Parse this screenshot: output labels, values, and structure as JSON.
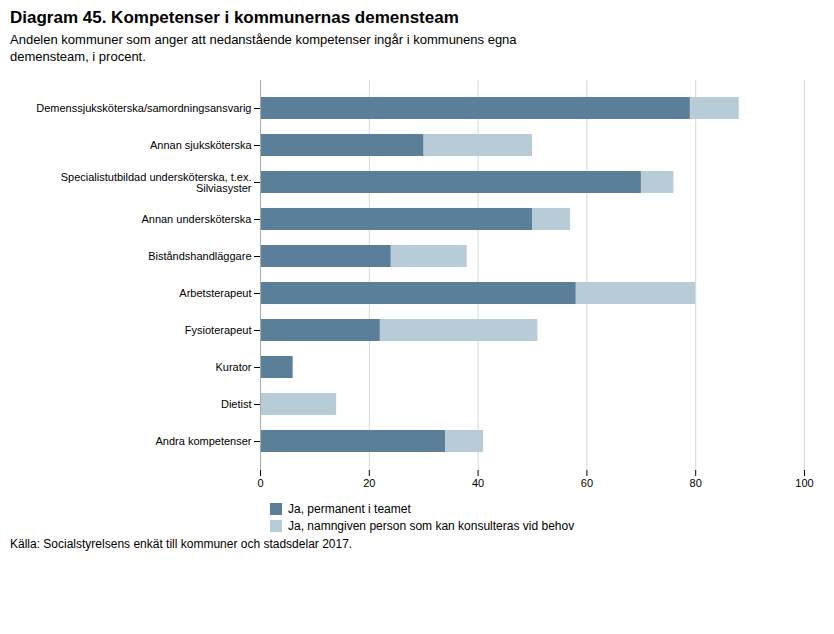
{
  "chart_data": {
    "type": "bar",
    "orientation": "horizontal",
    "stacked": false,
    "title": "Diagram 45. Kompetenser i kommunernas demensteam",
    "subtitle": "Andelen kommuner som anger att nedanstående kompetenser ingår i kommunens egna\ndemensteam, i procent.",
    "source": "Källa: Socialstyrelsens enkät till kommuner och stadsdelar 2017.",
    "categories": [
      "Demenssjuksköterska/samordningsansvarig",
      "Annan sjuksköterska",
      "Specialistutbildad undersköterska, t.ex.\nSilviasyster",
      "Annan undersköterska",
      "Biståndshandläggare",
      "Arbetsterapeut",
      "Fysioterapeut",
      "Kurator",
      "Dietist",
      "Andra kompetenser"
    ],
    "series": [
      {
        "name": "Ja, permanent i teamet",
        "color": "#5b7f99",
        "values": [
          79,
          30,
          70,
          50,
          24,
          58,
          22,
          6,
          0,
          34
        ]
      },
      {
        "name": "Ja, namngiven person som kan konsulteras vid behov",
        "color": "#b8ccd8",
        "values": [
          88,
          50,
          76,
          57,
          38,
          80,
          51,
          0,
          14,
          41
        ]
      }
    ],
    "xlim": [
      0,
      100
    ],
    "xticks": [
      0,
      20,
      40,
      60,
      80,
      100
    ],
    "grid": true,
    "legend": "bottom"
  }
}
